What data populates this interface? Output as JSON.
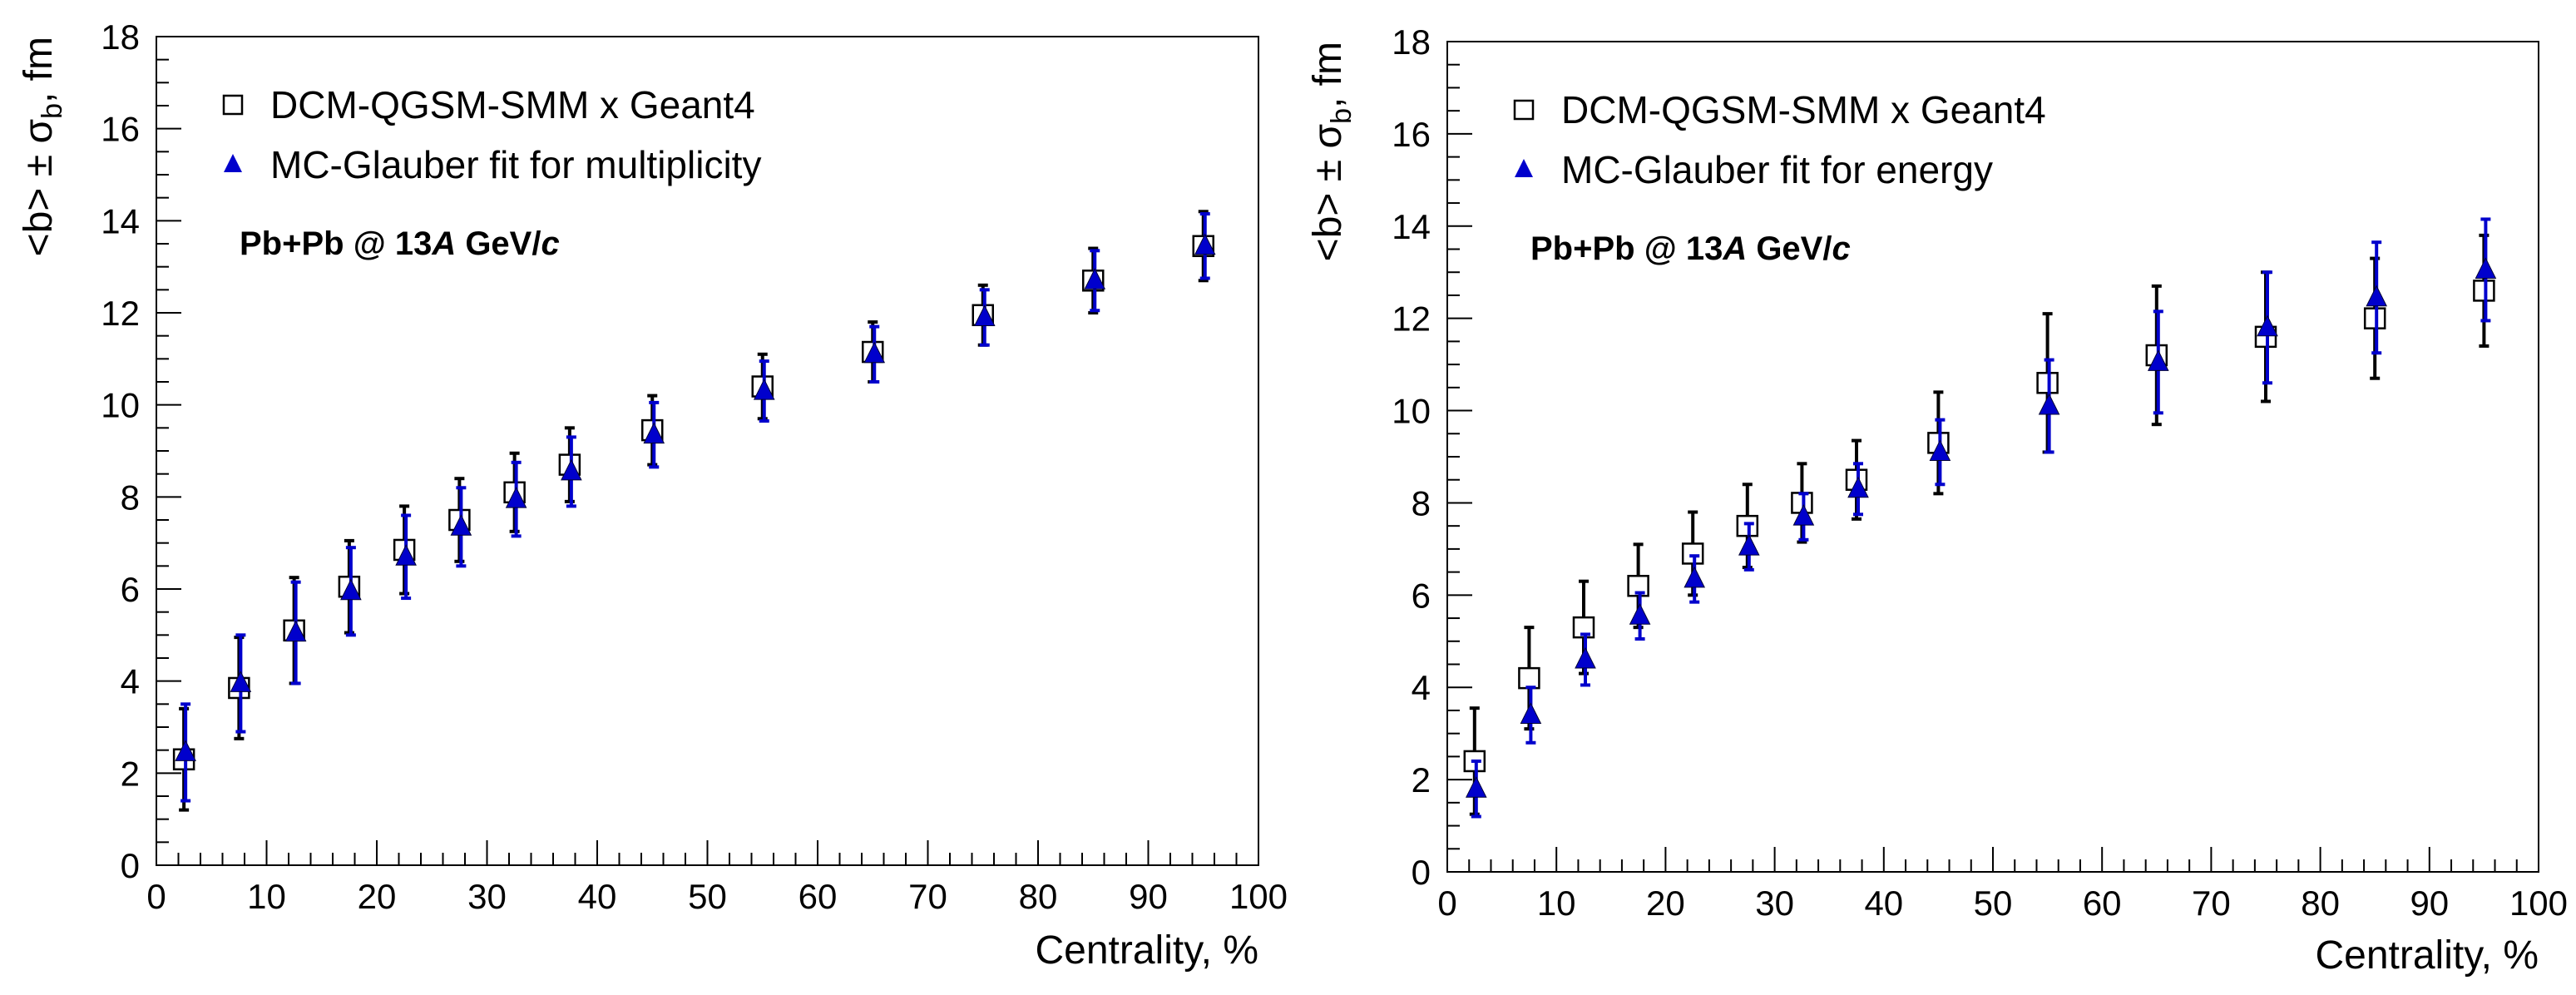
{
  "chart_data": [
    {
      "type": "scatter",
      "xlabel": "Centrality, %",
      "ylabel_parts": {
        "main": "<b> ± σ",
        "sub": "b",
        "tail": ", fm"
      },
      "xlim": [
        0,
        100
      ],
      "ylim": [
        0,
        18
      ],
      "xticks": [
        0,
        10,
        20,
        30,
        40,
        50,
        60,
        70,
        80,
        90,
        100
      ],
      "yticks": [
        0,
        2,
        4,
        6,
        8,
        10,
        12,
        14,
        16,
        18
      ],
      "legend_position": "top-left",
      "annotation": {
        "prefix": "Pb+Pb @ 13",
        "italic1": "A",
        "middle": " GeV/",
        "italic2": "c"
      },
      "series": [
        {
          "name": "DCM-QGSM-SMM x Geant4",
          "marker": "open-square",
          "color": "#000000",
          "x": [
            2.5,
            7.5,
            12.5,
            17.5,
            22.5,
            27.5,
            32.5,
            37.5,
            45,
            55,
            65,
            75,
            85,
            95
          ],
          "y": [
            2.3,
            3.85,
            5.1,
            6.05,
            6.85,
            7.5,
            8.1,
            8.7,
            9.45,
            10.4,
            11.15,
            11.95,
            12.7,
            13.45
          ],
          "err": [
            1.1,
            1.1,
            1.15,
            1.0,
            0.95,
            0.9,
            0.85,
            0.8,
            0.75,
            0.7,
            0.65,
            0.65,
            0.7,
            0.75
          ]
        },
        {
          "name": "MC-Glauber fit for multiplicity",
          "marker": "filled-triangle",
          "color": "#0000cc",
          "x": [
            2.5,
            7.5,
            12.5,
            17.5,
            22.5,
            27.5,
            32.5,
            37.5,
            45,
            55,
            65,
            75,
            85,
            95
          ],
          "y": [
            2.45,
            3.95,
            5.05,
            5.95,
            6.7,
            7.35,
            7.95,
            8.55,
            9.35,
            10.3,
            11.1,
            11.9,
            12.7,
            13.45
          ],
          "err": [
            1.05,
            1.05,
            1.1,
            0.95,
            0.9,
            0.85,
            0.8,
            0.75,
            0.7,
            0.65,
            0.6,
            0.6,
            0.65,
            0.7
          ]
        }
      ]
    },
    {
      "type": "scatter",
      "xlabel": "Centrality, %",
      "ylabel_parts": {
        "main": "<b> ± σ",
        "sub": "b",
        "tail": ", fm"
      },
      "xlim": [
        0,
        100
      ],
      "ylim": [
        0,
        18
      ],
      "xticks": [
        0,
        10,
        20,
        30,
        40,
        50,
        60,
        70,
        80,
        90,
        100
      ],
      "yticks": [
        0,
        2,
        4,
        6,
        8,
        10,
        12,
        14,
        16,
        18
      ],
      "legend_position": "top-left",
      "annotation": {
        "prefix": "Pb+Pb @ 13",
        "italic1": "A",
        "middle": " GeV/",
        "italic2": "c"
      },
      "series": [
        {
          "name": "DCM-QGSM-SMM x Geant4",
          "marker": "open-square",
          "color": "#000000",
          "x": [
            2.5,
            7.5,
            12.5,
            17.5,
            22.5,
            27.5,
            32.5,
            37.5,
            45,
            55,
            65,
            75,
            85,
            95
          ],
          "y": [
            2.4,
            4.2,
            5.3,
            6.2,
            6.9,
            7.5,
            8.0,
            8.5,
            9.3,
            10.6,
            11.2,
            11.6,
            12.0,
            12.6
          ],
          "err": [
            1.15,
            1.1,
            1.0,
            0.9,
            0.9,
            0.9,
            0.85,
            0.85,
            1.1,
            1.5,
            1.5,
            1.4,
            1.3,
            1.2
          ]
        },
        {
          "name": "MC-Glauber fit for energy",
          "marker": "filled-triangle",
          "color": "#0000cc",
          "x": [
            2.5,
            7.5,
            12.5,
            17.5,
            22.5,
            27.5,
            32.5,
            37.5,
            45,
            55,
            65,
            75,
            85,
            95
          ],
          "y": [
            1.8,
            3.4,
            4.6,
            5.55,
            6.35,
            7.05,
            7.7,
            8.3,
            9.1,
            10.1,
            11.05,
            11.8,
            12.45,
            13.05
          ],
          "err": [
            0.6,
            0.6,
            0.55,
            0.5,
            0.5,
            0.5,
            0.5,
            0.55,
            0.7,
            1.0,
            1.1,
            1.2,
            1.2,
            1.1
          ]
        }
      ]
    }
  ]
}
